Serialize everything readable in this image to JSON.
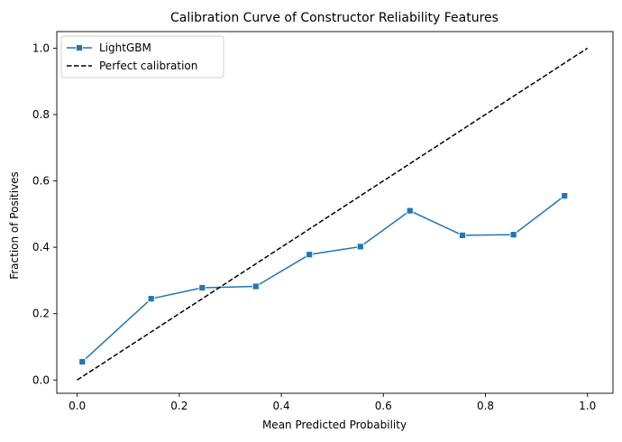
{
  "chart_data": {
    "type": "line",
    "title": "Calibration Curve of Constructor Reliability Features",
    "xlabel": "Mean Predicted Probability",
    "ylabel": "Fraction of Positives",
    "xlim": [
      -0.04,
      1.05
    ],
    "ylim": [
      -0.04,
      1.05
    ],
    "xticks": [
      0.0,
      0.2,
      0.4,
      0.6,
      0.8,
      1.0
    ],
    "yticks": [
      0.0,
      0.2,
      0.4,
      0.6,
      0.8,
      1.0
    ],
    "xtick_labels": [
      "0.0",
      "0.2",
      "0.4",
      "0.6",
      "0.8",
      "1.0"
    ],
    "ytick_labels": [
      "0.0",
      "0.2",
      "0.4",
      "0.6",
      "0.8",
      "1.0"
    ],
    "grid": false,
    "legend_position": "top-left",
    "series": [
      {
        "name": "LightGBM",
        "color": "#1f77b4",
        "marker": "square",
        "line_style": "solid",
        "x": [
          0.01,
          0.145,
          0.245,
          0.35,
          0.455,
          0.555,
          0.652,
          0.755,
          0.855,
          0.955
        ],
        "y": [
          0.055,
          0.245,
          0.278,
          0.282,
          0.378,
          0.402,
          0.51,
          0.436,
          0.438,
          0.555
        ]
      },
      {
        "name": "Perfect calibration",
        "color": "#000000",
        "marker": "none",
        "line_style": "dashed",
        "x": [
          0.0,
          1.0
        ],
        "y": [
          0.0,
          1.0
        ]
      }
    ]
  }
}
